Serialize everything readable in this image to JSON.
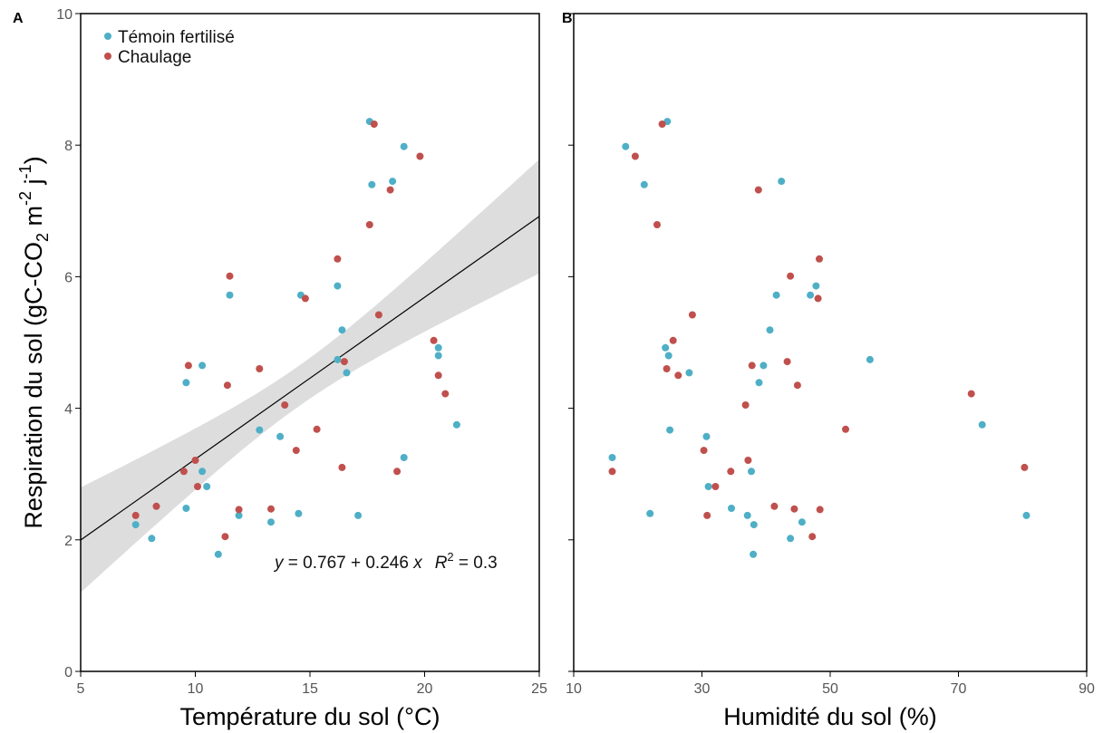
{
  "colors": {
    "temoin": "#4eafc6",
    "chaulage": "#c0504d",
    "band": "#dddddd",
    "line": "#000000"
  },
  "figure": {
    "ylabel_main": "Respiration du sol (gC-CO",
    "ylabel_sub": "2",
    "ylabel_mid": " m",
    "ylabel_sup1": "-2",
    "ylabel_j": " j",
    "ylabel_sup2": "-1",
    "ylabel_end": ")"
  },
  "legend": {
    "temoin": "Témoin fertilisé",
    "chaulage": "Chaulage"
  },
  "chart_data": [
    {
      "panel": "A",
      "type": "scatter",
      "xlabel": "Température du sol (°C)",
      "xlim": [
        5,
        25
      ],
      "ylim": [
        0,
        10
      ],
      "xticks": [
        5,
        10,
        15,
        20,
        25
      ],
      "yticks": [
        0,
        2,
        4,
        6,
        8,
        10
      ],
      "regression": {
        "intercept": 0.767,
        "slope": 0.246,
        "r2": 0.3,
        "ci_band": true
      },
      "equation": {
        "y": "y",
        "eq": " = 0.767 + 0.246 ",
        "x": "x",
        "r": "R",
        "sup": "2",
        "tail": " = 0.3"
      },
      "series": [
        {
          "name": "Témoin fertilisé",
          "points": [
            [
              7.4,
              2.23
            ],
            [
              8.1,
              2.02
            ],
            [
              9.6,
              2.48
            ],
            [
              9.6,
              4.39
            ],
            [
              10.3,
              4.65
            ],
            [
              10.3,
              3.04
            ],
            [
              10.5,
              2.81
            ],
            [
              11.0,
              1.78
            ],
            [
              11.5,
              5.72
            ],
            [
              11.9,
              2.37
            ],
            [
              12.8,
              3.67
            ],
            [
              13.3,
              2.27
            ],
            [
              13.7,
              3.57
            ],
            [
              14.5,
              2.4
            ],
            [
              14.6,
              5.72
            ],
            [
              16.2,
              5.86
            ],
            [
              16.2,
              4.74
            ],
            [
              16.4,
              5.19
            ],
            [
              16.6,
              4.54
            ],
            [
              17.1,
              2.37
            ],
            [
              17.6,
              8.36
            ],
            [
              17.7,
              7.4
            ],
            [
              18.6,
              7.45
            ],
            [
              19.1,
              3.25
            ],
            [
              19.1,
              7.98
            ],
            [
              20.6,
              4.92
            ],
            [
              20.6,
              4.8
            ],
            [
              21.4,
              3.75
            ]
          ]
        },
        {
          "name": "Chaulage",
          "points": [
            [
              7.4,
              2.37
            ],
            [
              8.3,
              2.51
            ],
            [
              9.5,
              3.04
            ],
            [
              9.7,
              4.65
            ],
            [
              10.0,
              3.21
            ],
            [
              10.1,
              2.81
            ],
            [
              11.3,
              2.05
            ],
            [
              11.4,
              4.35
            ],
            [
              11.5,
              6.01
            ],
            [
              11.9,
              2.46
            ],
            [
              12.8,
              4.6
            ],
            [
              13.3,
              2.47
            ],
            [
              13.9,
              4.05
            ],
            [
              14.4,
              3.36
            ],
            [
              14.8,
              5.67
            ],
            [
              15.3,
              3.68
            ],
            [
              16.2,
              6.27
            ],
            [
              16.4,
              3.1
            ],
            [
              16.5,
              4.71
            ],
            [
              17.6,
              6.79
            ],
            [
              17.8,
              8.32
            ],
            [
              18.0,
              5.42
            ],
            [
              18.5,
              7.32
            ],
            [
              18.8,
              3.04
            ],
            [
              19.8,
              7.83
            ],
            [
              20.4,
              5.03
            ],
            [
              20.6,
              4.5
            ],
            [
              20.9,
              4.22
            ]
          ]
        }
      ]
    },
    {
      "panel": "B",
      "type": "scatter",
      "xlabel": "Humidité du sol (%)",
      "xlim": [
        10,
        90
      ],
      "ylim": [
        0,
        10
      ],
      "xticks": [
        10,
        30,
        50,
        70,
        90
      ],
      "yticks": [
        0,
        2,
        4,
        6,
        8,
        10
      ],
      "series": [
        {
          "name": "Témoin fertilisé",
          "points": [
            [
              16.0,
              3.25
            ],
            [
              18.1,
              7.98
            ],
            [
              21.0,
              7.4
            ],
            [
              21.9,
              2.4
            ],
            [
              24.3,
              4.92
            ],
            [
              24.6,
              8.36
            ],
            [
              24.8,
              4.8
            ],
            [
              25.0,
              3.67
            ],
            [
              28.0,
              4.54
            ],
            [
              30.7,
              3.57
            ],
            [
              31.0,
              2.81
            ],
            [
              34.6,
              2.48
            ],
            [
              37.1,
              2.37
            ],
            [
              37.7,
              3.04
            ],
            [
              38.0,
              1.78
            ],
            [
              38.1,
              2.23
            ],
            [
              38.9,
              4.39
            ],
            [
              39.6,
              4.65
            ],
            [
              40.6,
              5.19
            ],
            [
              41.6,
              5.72
            ],
            [
              42.4,
              7.45
            ],
            [
              43.8,
              2.02
            ],
            [
              45.6,
              2.27
            ],
            [
              46.9,
              5.72
            ],
            [
              47.8,
              5.86
            ],
            [
              56.2,
              4.74
            ],
            [
              73.7,
              3.75
            ],
            [
              80.6,
              2.37
            ]
          ]
        },
        {
          "name": "Chaulage",
          "points": [
            [
              16.0,
              3.04
            ],
            [
              19.6,
              7.83
            ],
            [
              23.0,
              6.79
            ],
            [
              23.8,
              8.32
            ],
            [
              24.5,
              4.6
            ],
            [
              25.5,
              5.03
            ],
            [
              26.3,
              4.5
            ],
            [
              28.5,
              5.42
            ],
            [
              30.3,
              3.36
            ],
            [
              30.8,
              2.37
            ],
            [
              32.1,
              2.81
            ],
            [
              34.5,
              3.04
            ],
            [
              36.8,
              4.05
            ],
            [
              37.2,
              3.21
            ],
            [
              37.8,
              4.65
            ],
            [
              38.8,
              7.32
            ],
            [
              41.3,
              2.51
            ],
            [
              43.3,
              4.71
            ],
            [
              43.8,
              6.01
            ],
            [
              44.4,
              2.47
            ],
            [
              44.9,
              4.35
            ],
            [
              47.2,
              2.05
            ],
            [
              48.1,
              5.67
            ],
            [
              48.3,
              6.27
            ],
            [
              48.4,
              2.46
            ],
            [
              52.4,
              3.68
            ],
            [
              72.0,
              4.22
            ],
            [
              80.3,
              3.1
            ]
          ]
        }
      ]
    }
  ]
}
